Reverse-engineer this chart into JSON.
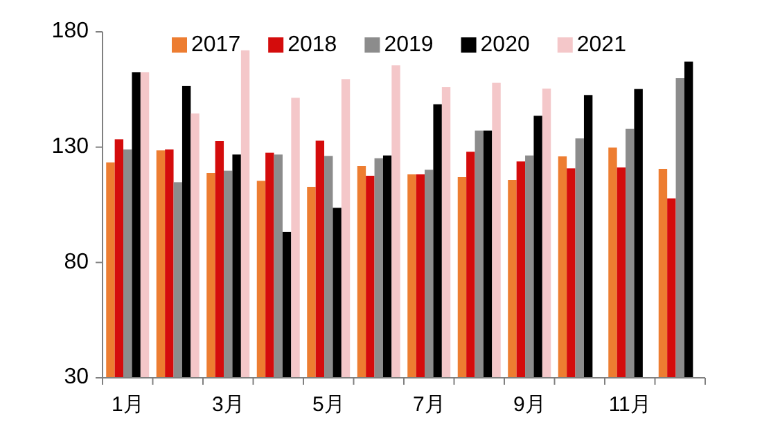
{
  "chart_data": {
    "type": "bar",
    "categories": [
      "1月",
      null,
      "3月",
      null,
      "5月",
      null,
      "7月",
      null,
      "9月",
      null,
      "11月",
      null
    ],
    "series": [
      {
        "name": "2017",
        "color": "#ed7d31",
        "values": [
          123.4,
          128.6,
          118.8,
          115.4,
          112.8,
          121.8,
          118.2,
          117,
          115.8,
          126,
          129.8,
          120.6
        ]
      },
      {
        "name": "2018",
        "color": "#d40c0c",
        "values": [
          133.4,
          129,
          132.6,
          127.6,
          132.8,
          117.6,
          118.2,
          128,
          123.8,
          120.8,
          121.2,
          107.8
        ]
      },
      {
        "name": "2019",
        "color": "#8c8c8c",
        "values": [
          129,
          114.8,
          119.8,
          126.8,
          126.2,
          125.2,
          120.2,
          137.2,
          126.4,
          133.8,
          138,
          159.9
        ]
      },
      {
        "name": "2020",
        "color": "#000000",
        "values": [
          162.5,
          156.6,
          126.8,
          93.3,
          103.7,
          126.4,
          148.6,
          137.2,
          143.6,
          152.6,
          155.2,
          167.1
        ]
      },
      {
        "name": "2021",
        "color": "#f4c7c9",
        "values": [
          162.5,
          144.6,
          172,
          151.4,
          159.5,
          165.5,
          156,
          157.9,
          155.4,
          null,
          null,
          null
        ]
      }
    ],
    "ylim": [
      30,
      180
    ],
    "yticks": [
      30,
      80,
      130,
      180
    ],
    "grid": false,
    "legend": "top"
  }
}
